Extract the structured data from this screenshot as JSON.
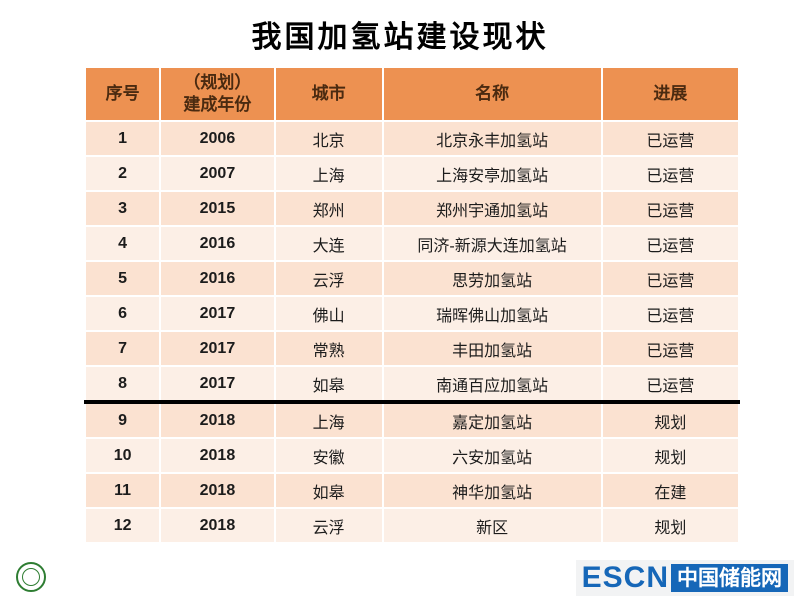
{
  "title": "我国加氢站建设现状",
  "table": {
    "headers": [
      "序号",
      "（规划）\n建成年份",
      "城市",
      "名称",
      "进展"
    ],
    "column_keys": [
      "no",
      "year",
      "city",
      "name",
      "status"
    ],
    "divider_before_index": 8,
    "rows": [
      {
        "no": "1",
        "year": "2006",
        "city": "北京",
        "name": "北京永丰加氢站",
        "status": "已运营"
      },
      {
        "no": "2",
        "year": "2007",
        "city": "上海",
        "name": "上海安亭加氢站",
        "status": "已运营"
      },
      {
        "no": "3",
        "year": "2015",
        "city": "郑州",
        "name": "郑州宇通加氢站",
        "status": "已运营"
      },
      {
        "no": "4",
        "year": "2016",
        "city": "大连",
        "name": "同济-新源大连加氢站",
        "status": "已运营"
      },
      {
        "no": "5",
        "year": "2016",
        "city": "云浮",
        "name": "思劳加氢站",
        "status": "已运营"
      },
      {
        "no": "6",
        "year": "2017",
        "city": "佛山",
        "name": "瑞晖佛山加氢站",
        "status": "已运营"
      },
      {
        "no": "7",
        "year": "2017",
        "city": "常熟",
        "name": "丰田加氢站",
        "status": "已运营"
      },
      {
        "no": "8",
        "year": "2017",
        "city": "如皋",
        "name": "南通百应加氢站",
        "status": "已运营"
      },
      {
        "no": "9",
        "year": "2018",
        "city": "上海",
        "name": "嘉定加氢站",
        "status": "规划"
      },
      {
        "no": "10",
        "year": "2018",
        "city": "安徽",
        "name": "六安加氢站",
        "status": "规划"
      },
      {
        "no": "11",
        "year": "2018",
        "city": "如皋",
        "name": "神华加氢站",
        "status": "在建"
      },
      {
        "no": "12",
        "year": "2018",
        "city": "云浮",
        "name": "新区",
        "status": "规划"
      }
    ]
  },
  "footer": {
    "brand": "ESCN",
    "brand_cn": "中国储能网"
  },
  "colors": {
    "header_bg": "#ED9151",
    "row_a": "#FBE2D1",
    "row_b": "#FCEFE6",
    "divider": "#000000",
    "escn_blue": "#1667B8",
    "seal_green": "#2E7D32"
  }
}
